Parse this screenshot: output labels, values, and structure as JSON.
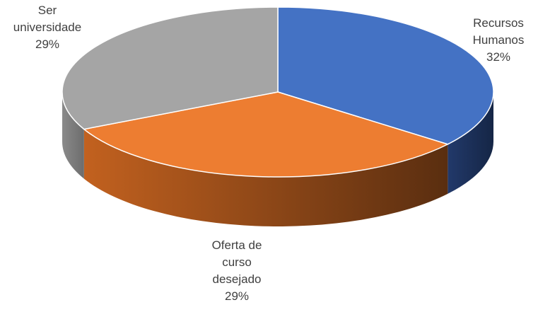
{
  "chart_data": {
    "type": "pie",
    "three_d": true,
    "categories": [
      "Recursos Humanos",
      "Oferta de curso desejado",
      "Ser universidade"
    ],
    "values": [
      32,
      29,
      29
    ],
    "value_labels": [
      "32%",
      "29%",
      "29%"
    ],
    "colors": [
      "#4472c4",
      "#ed7d31",
      "#a5a5a5"
    ]
  }
}
